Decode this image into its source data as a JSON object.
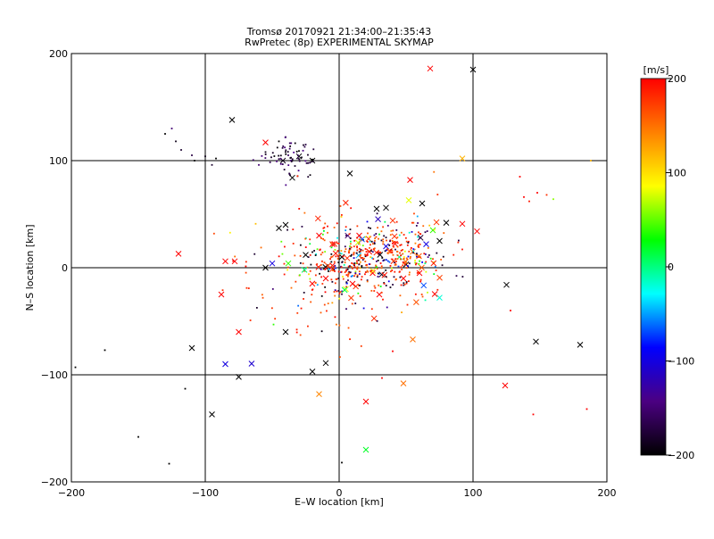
{
  "chart_data": {
    "type": "scatter",
    "title": "Tromsø 20170921 21:34:00–21:35:43",
    "subtitle": "RwPretec (8p) EXPERIMENTAL SKYMAP",
    "xlabel": "E–W location [km]",
    "ylabel": "N–S location [km]",
    "xlim": [
      -200,
      200
    ],
    "ylim": [
      -200,
      200
    ],
    "xticks": [
      "−200",
      "−100",
      "0",
      "100",
      "200"
    ],
    "yticks": [
      "−200",
      "−100",
      "0",
      "100",
      "200"
    ],
    "grid": true,
    "colorbar": {
      "label": "[m/s]",
      "range": [
        -200,
        200
      ],
      "ticks": [
        "200",
        "100",
        "0",
        "−100",
        "−200"
      ],
      "colors": [
        "#000000",
        "#4b0082",
        "#0000ff",
        "#00ffff",
        "#00ff00",
        "#ffff00",
        "#ff8000",
        "#ff0000"
      ]
    },
    "markers": {
      "dot": "small point detections",
      "cross": "x detections"
    },
    "points": [
      {
        "x": -130,
        "y": 125,
        "v": -200,
        "m": "dot"
      },
      {
        "x": -125,
        "y": 130,
        "v": -150,
        "m": "dot"
      },
      {
        "x": -122,
        "y": 118,
        "v": -190,
        "m": "dot"
      },
      {
        "x": -118,
        "y": 110,
        "v": -180,
        "m": "dot"
      },
      {
        "x": -110,
        "y": 105,
        "v": -170,
        "m": "dot"
      },
      {
        "x": -108,
        "y": 100,
        "v": -200,
        "m": "dot"
      },
      {
        "x": -100,
        "y": 104,
        "v": -190,
        "m": "dot"
      },
      {
        "x": -95,
        "y": 96,
        "v": -180,
        "m": "dot"
      },
      {
        "x": -92,
        "y": 102,
        "v": -200,
        "m": "dot"
      },
      {
        "x": -60,
        "y": 96,
        "v": -150,
        "m": "dot"
      },
      {
        "x": -55,
        "y": 108,
        "v": -190,
        "m": "dot"
      },
      {
        "x": -45,
        "y": 118,
        "v": -200,
        "m": "dot"
      },
      {
        "x": -38,
        "y": 105,
        "v": -160,
        "m": "dot"
      },
      {
        "x": -35,
        "y": 100,
        "v": -190,
        "m": "dot"
      },
      {
        "x": -30,
        "y": 109,
        "v": -200,
        "m": "dot"
      },
      {
        "x": -33,
        "y": 95,
        "v": -180,
        "m": "dot"
      },
      {
        "x": -28,
        "y": 103,
        "v": -190,
        "m": "dot"
      },
      {
        "x": -25,
        "y": 115,
        "v": -170,
        "m": "dot"
      },
      {
        "x": -20,
        "y": 101,
        "v": -200,
        "m": "dot"
      },
      {
        "x": -40,
        "y": 122,
        "v": -180,
        "m": "dot"
      },
      {
        "x": -80,
        "y": 138,
        "v": -200,
        "m": "cross"
      },
      {
        "x": -55,
        "y": 117,
        "v": 200,
        "m": "cross"
      },
      {
        "x": -30,
        "y": 104,
        "v": -200,
        "m": "cross"
      },
      {
        "x": -42,
        "y": 100,
        "v": -190,
        "m": "cross"
      },
      {
        "x": -35,
        "y": 84,
        "v": -200,
        "m": "cross"
      },
      {
        "x": -20,
        "y": 100,
        "v": -200,
        "m": "cross"
      },
      {
        "x": 8,
        "y": 88,
        "v": -200,
        "m": "cross"
      },
      {
        "x": 68,
        "y": 186,
        "v": 200,
        "m": "cross"
      },
      {
        "x": 100,
        "y": 185,
        "v": -200,
        "m": "cross"
      },
      {
        "x": 92,
        "y": 102,
        "v": 120,
        "m": "cross"
      },
      {
        "x": 53,
        "y": 82,
        "v": 200,
        "m": "cross"
      },
      {
        "x": 35,
        "y": 56,
        "v": -200,
        "m": "cross"
      },
      {
        "x": 28,
        "y": 55,
        "v": -200,
        "m": "cross"
      },
      {
        "x": 40,
        "y": 44,
        "v": 180,
        "m": "cross"
      },
      {
        "x": 52,
        "y": 63,
        "v": 80,
        "m": "cross"
      },
      {
        "x": 62,
        "y": 60,
        "v": -200,
        "m": "cross"
      },
      {
        "x": 80,
        "y": 42,
        "v": -200,
        "m": "cross"
      },
      {
        "x": 92,
        "y": 41,
        "v": 200,
        "m": "cross"
      },
      {
        "x": 103,
        "y": 34,
        "v": 200,
        "m": "cross"
      },
      {
        "x": 135,
        "y": 85,
        "v": 200,
        "m": "dot"
      },
      {
        "x": 138,
        "y": 66,
        "v": 200,
        "m": "dot"
      },
      {
        "x": 142,
        "y": 62,
        "v": 190,
        "m": "dot"
      },
      {
        "x": 148,
        "y": 70,
        "v": 200,
        "m": "dot"
      },
      {
        "x": 155,
        "y": 68,
        "v": 180,
        "m": "dot"
      },
      {
        "x": 160,
        "y": 64,
        "v": 60,
        "m": "dot"
      },
      {
        "x": 188,
        "y": 100,
        "v": 120,
        "m": "dot"
      },
      {
        "x": -40,
        "y": 40,
        "v": -200,
        "m": "cross"
      },
      {
        "x": -45,
        "y": 37,
        "v": -200,
        "m": "cross"
      },
      {
        "x": -55,
        "y": 0,
        "v": -200,
        "m": "cross"
      },
      {
        "x": -50,
        "y": 4,
        "v": -100,
        "m": "cross"
      },
      {
        "x": -38,
        "y": 4,
        "v": 40,
        "m": "cross"
      },
      {
        "x": -120,
        "y": 13,
        "v": 200,
        "m": "cross"
      },
      {
        "x": -85,
        "y": 6,
        "v": 200,
        "m": "cross"
      },
      {
        "x": -78,
        "y": 6,
        "v": 200,
        "m": "cross"
      },
      {
        "x": -88,
        "y": -25,
        "v": 200,
        "m": "cross"
      },
      {
        "x": -40,
        "y": -60,
        "v": -200,
        "m": "cross"
      },
      {
        "x": -75,
        "y": -60,
        "v": 200,
        "m": "cross"
      },
      {
        "x": -110,
        "y": -75,
        "v": -200,
        "m": "cross"
      },
      {
        "x": -85,
        "y": -90,
        "v": -100,
        "m": "cross"
      },
      {
        "x": -75,
        "y": -102,
        "v": -200,
        "m": "cross"
      },
      {
        "x": -20,
        "y": -97,
        "v": -200,
        "m": "cross"
      },
      {
        "x": -10,
        "y": -89,
        "v": -200,
        "m": "cross"
      },
      {
        "x": -15,
        "y": -118,
        "v": 140,
        "m": "cross"
      },
      {
        "x": -95,
        "y": -137,
        "v": -200,
        "m": "cross"
      },
      {
        "x": 20,
        "y": -125,
        "v": 200,
        "m": "cross"
      },
      {
        "x": 48,
        "y": -108,
        "v": 150,
        "m": "cross"
      },
      {
        "x": 55,
        "y": -67,
        "v": 150,
        "m": "cross"
      },
      {
        "x": 75,
        "y": -28,
        "v": -20,
        "m": "cross"
      },
      {
        "x": 125,
        "y": -16,
        "v": -200,
        "m": "cross"
      },
      {
        "x": 147,
        "y": -69,
        "v": -200,
        "m": "cross"
      },
      {
        "x": 180,
        "y": -72,
        "v": -200,
        "m": "cross"
      },
      {
        "x": 124,
        "y": -110,
        "v": 200,
        "m": "cross"
      },
      {
        "x": 20,
        "y": -170,
        "v": 20,
        "m": "cross"
      },
      {
        "x": 2,
        "y": -182,
        "v": -200,
        "m": "dot"
      },
      {
        "x": -150,
        "y": -158,
        "v": -200,
        "m": "dot"
      },
      {
        "x": -127,
        "y": -183,
        "v": -200,
        "m": "dot"
      },
      {
        "x": -175,
        "y": -77,
        "v": -200,
        "m": "dot"
      },
      {
        "x": -197,
        "y": -93,
        "v": -200,
        "m": "dot"
      },
      {
        "x": -115,
        "y": -113,
        "v": -200,
        "m": "dot"
      },
      {
        "x": 145,
        "y": -137,
        "v": 200,
        "m": "dot"
      },
      {
        "x": 185,
        "y": -132,
        "v": 200,
        "m": "dot"
      },
      {
        "x": 128,
        "y": -40,
        "v": 200,
        "m": "dot"
      },
      {
        "x": 32,
        "y": -103,
        "v": 200,
        "m": "dot"
      },
      {
        "x": 40,
        "y": -78,
        "v": 200,
        "m": "dot"
      },
      {
        "x": 2,
        "y": 10,
        "v": -200,
        "m": "cross"
      },
      {
        "x": -5,
        "y": 2,
        "v": 200,
        "m": "cross"
      },
      {
        "x": 10,
        "y": -15,
        "v": 200,
        "m": "cross"
      },
      {
        "x": 25,
        "y": -5,
        "v": 200,
        "m": "cross"
      },
      {
        "x": 15,
        "y": 30,
        "v": 200,
        "m": "cross"
      },
      {
        "x": 22,
        "y": 27,
        "v": 180,
        "m": "cross"
      },
      {
        "x": 35,
        "y": 20,
        "v": -100,
        "m": "cross"
      },
      {
        "x": 45,
        "y": 10,
        "v": 0,
        "m": "cross"
      },
      {
        "x": 48,
        "y": -10,
        "v": 200,
        "m": "cross"
      },
      {
        "x": 50,
        "y": 3,
        "v": -200,
        "m": "cross"
      },
      {
        "x": 55,
        "y": 15,
        "v": 150,
        "m": "cross"
      },
      {
        "x": 60,
        "y": -5,
        "v": 200,
        "m": "cross"
      },
      {
        "x": -5,
        "y": 22,
        "v": 200,
        "m": "cross"
      },
      {
        "x": -10,
        "y": -10,
        "v": 200,
        "m": "cross"
      },
      {
        "x": -25,
        "y": 12,
        "v": -200,
        "m": "cross"
      },
      {
        "x": -15,
        "y": 30,
        "v": 200,
        "m": "cross"
      },
      {
        "x": 5,
        "y": -20,
        "v": 80,
        "m": "cross"
      },
      {
        "x": 30,
        "y": -25,
        "v": 200,
        "m": "cross"
      },
      {
        "x": 70,
        "y": 35,
        "v": 40,
        "m": "cross"
      },
      {
        "x": 75,
        "y": 25,
        "v": -200,
        "m": "cross"
      },
      {
        "x": 65,
        "y": 22,
        "v": -100,
        "m": "cross"
      }
    ],
    "clusters": [
      {
        "cx": 15,
        "cy": 5,
        "sx": 25,
        "sy": 18,
        "n": 380,
        "seed": 7
      },
      {
        "cx": 45,
        "cy": 15,
        "sx": 22,
        "sy": 15,
        "n": 160,
        "seed": 11
      },
      {
        "cx": -35,
        "cy": 103,
        "sx": 10,
        "sy": 8,
        "n": 60,
        "seed": 5
      },
      {
        "cx": -10,
        "cy": -10,
        "sx": 40,
        "sy": 35,
        "n": 90,
        "seed": 19
      }
    ]
  }
}
